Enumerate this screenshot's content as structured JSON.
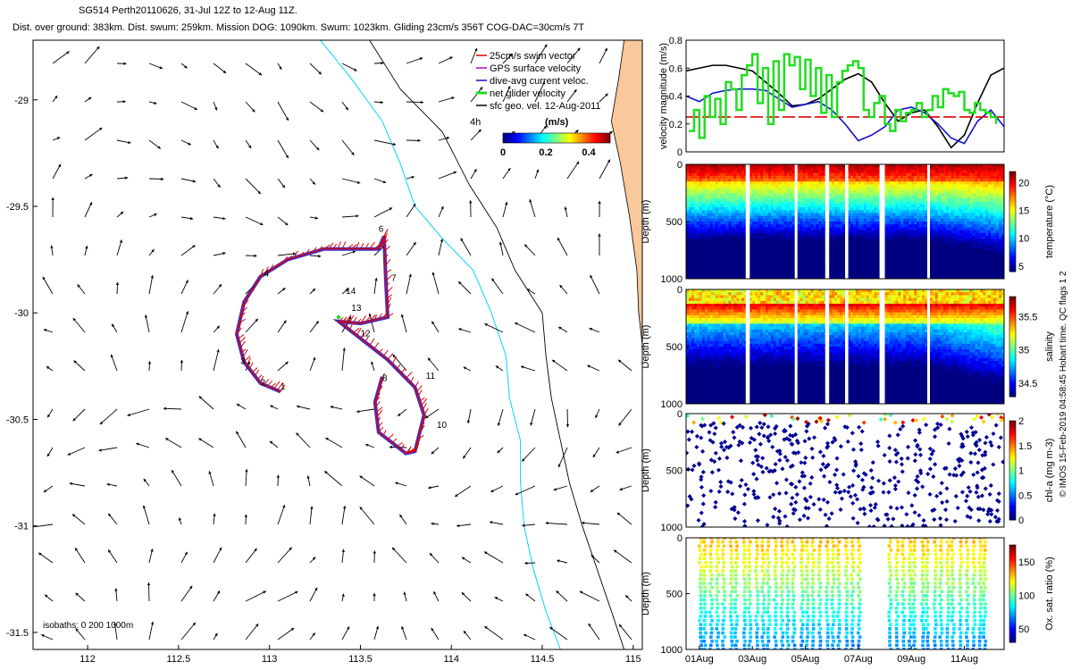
{
  "header": {
    "line1": "SG514 Perth20110626, 31-Jul 12Z to 12-Aug 11Z.",
    "line2": "Dist. over ground: 383km. Dist. swum: 259km. Mission DOG: 1090km. Swum: 1023km. Gliding 23cm/s 356T COG-DAC=30cm/s 7T"
  },
  "side_note": "© IMOS 15-Feb-2019 04:58:45 Hobart time. QC flags 1  2",
  "colors": {
    "land": "#f9c89b",
    "isobath_200": "#00d5ff",
    "isobath_1000": "#000000",
    "track_red": "#e00000",
    "track_blue": "#1010d0",
    "net_green": "#22dd22"
  },
  "map": {
    "xlim": [
      111.7,
      115.05
    ],
    "ylim": [
      -31.58,
      -28.72
    ],
    "xticks": [
      "112",
      "112.5",
      "113",
      "113.5",
      "114",
      "114.5",
      "115"
    ],
    "xtick_values": [
      112,
      112.5,
      113,
      113.5,
      114,
      114.5,
      115
    ],
    "yticks": [
      "-29",
      "-29.5",
      "-30",
      "-30.5",
      "-31",
      "-31.5"
    ],
    "ytick_values": [
      -29,
      -29.5,
      -30,
      -30.5,
      -31,
      -31.5
    ],
    "isobaths_label": "isobaths: 0   200   1000m",
    "legend": [
      {
        "label": "25cm/s swim vector",
        "color": "#e00000"
      },
      {
        "label": "GPS surface velocity",
        "color": "#c000c0"
      },
      {
        "label": "dive-avg current veloc.",
        "color": "#1010d0"
      },
      {
        "label": "net glider velocity",
        "color": "#22dd22"
      },
      {
        "label": "sfc geo. vel. 12-Aug-2011",
        "color": "#000000"
      }
    ],
    "colorbar": {
      "label": "(m/s)",
      "ticks": [
        "0",
        "0.2",
        "0.4"
      ],
      "range": [
        0,
        0.5
      ],
      "corner_label": "4h"
    },
    "track_labels": [
      {
        "t": "1",
        "lon": 113.06,
        "lat": -30.36
      },
      {
        "t": "2",
        "lon": 112.95,
        "lat": -30.34
      },
      {
        "t": "3",
        "lon": 112.84,
        "lat": -30.24
      },
      {
        "t": "4",
        "lon": 112.97,
        "lat": -29.83
      },
      {
        "t": "6",
        "lon": 113.6,
        "lat": -29.62
      },
      {
        "t": "7",
        "lon": 113.67,
        "lat": -29.85
      },
      {
        "t": "8",
        "lon": 113.62,
        "lat": -30.32
      },
      {
        "t": "10",
        "lon": 113.92,
        "lat": -30.54
      },
      {
        "t": "11",
        "lon": 113.86,
        "lat": -30.31
      },
      {
        "t": "12",
        "lon": 113.5,
        "lat": -30.11
      },
      {
        "t": "13",
        "lon": 113.45,
        "lat": -29.99
      },
      {
        "t": "14",
        "lon": 113.42,
        "lat": -29.91
      }
    ]
  },
  "chart_data": [
    {
      "type": "line",
      "ylabel": "velocity magnitude (m/s)",
      "xlim": [
        0.5,
        12.5
      ],
      "ylim": [
        0,
        0.8
      ],
      "yticks": [
        "0",
        "0.2",
        "0.4",
        "0.6",
        "0.8"
      ],
      "ytick_values": [
        0,
        0.2,
        0.4,
        0.6,
        0.8
      ],
      "series": [
        {
          "color": "#000000",
          "x": [
            0.5,
            1,
            1.5,
            2,
            2.5,
            3,
            3.5,
            4,
            4.5,
            5,
            5.5,
            6,
            6.5,
            7,
            7.5,
            8,
            8.5,
            9,
            9.5,
            10,
            10.5,
            11,
            11.5,
            12,
            12.5
          ],
          "values": [
            0.58,
            0.6,
            0.62,
            0.62,
            0.6,
            0.58,
            0.5,
            0.42,
            0.33,
            0.34,
            0.38,
            0.45,
            0.52,
            0.56,
            0.5,
            0.35,
            0.22,
            0.28,
            0.3,
            0.18,
            0.03,
            0.12,
            0.35,
            0.55,
            0.6
          ]
        },
        {
          "color": "#1010d0",
          "x": [
            0.5,
            1,
            1.5,
            2,
            2.5,
            3,
            3.5,
            4,
            4.5,
            5,
            5.5,
            6,
            6.5,
            7,
            7.5,
            8,
            8.5,
            9,
            9.5,
            10,
            10.5,
            11,
            11.5,
            12,
            12.5
          ],
          "values": [
            0.4,
            0.36,
            0.42,
            0.44,
            0.45,
            0.45,
            0.44,
            0.38,
            0.32,
            0.34,
            0.36,
            0.3,
            0.2,
            0.08,
            0.12,
            0.18,
            0.3,
            0.32,
            0.28,
            0.2,
            0.1,
            0.06,
            0.22,
            0.3,
            0.18
          ]
        },
        {
          "color": "#e00000",
          "x": [
            0.5,
            12.5
          ],
          "values": [
            0.25,
            0.25
          ]
        },
        {
          "color": "#22dd22",
          "x": [
            0.6,
            0.8,
            1,
            1.2,
            1.4,
            1.6,
            1.8,
            2,
            2.2,
            2.4,
            2.6,
            2.8,
            3,
            3.2,
            3.4,
            3.6,
            3.8,
            4,
            4.2,
            4.4,
            4.6,
            4.8,
            5,
            5.2,
            5.4,
            5.6,
            5.8,
            6,
            6.2,
            6.4,
            6.6,
            6.8,
            7,
            7.2,
            7.4,
            7.6,
            7.8,
            8,
            8.2,
            8.4,
            8.6,
            8.8,
            9,
            9.2,
            9.4,
            9.6,
            9.8,
            10,
            10.2,
            10.4,
            10.6,
            10.8,
            11,
            11.2,
            11.4,
            11.6,
            11.8,
            12,
            12.2
          ],
          "values": [
            0.15,
            0.3,
            0.1,
            0.4,
            0.25,
            0.38,
            0.2,
            0.5,
            0.45,
            0.3,
            0.55,
            0.62,
            0.7,
            0.35,
            0.6,
            0.2,
            0.65,
            0.3,
            0.7,
            0.62,
            0.68,
            0.45,
            0.66,
            0.4,
            0.6,
            0.28,
            0.55,
            0.25,
            0.5,
            0.58,
            0.62,
            0.65,
            0.6,
            0.3,
            0.25,
            0.35,
            0.4,
            0.2,
            0.15,
            0.3,
            0.22,
            0.28,
            0.3,
            0.35,
            0.25,
            0.3,
            0.4,
            0.32,
            0.45,
            0.42,
            0.4,
            0.43,
            0.3,
            0.28,
            0.35,
            0.3,
            0.28,
            0.25,
            0.2
          ]
        }
      ]
    },
    {
      "type": "heatmap",
      "ylabel": "Depth (m)",
      "clabel": "temperature (°C)",
      "clim": [
        4,
        22
      ],
      "cticks": [
        "5",
        "10",
        "15",
        "20"
      ],
      "ctick_values": [
        5,
        10,
        15,
        20
      ],
      "yticks": [
        "0",
        "500",
        "1000"
      ],
      "ytick_values": [
        0,
        500,
        1000
      ],
      "ylim": [
        1000,
        0
      ]
    },
    {
      "type": "heatmap",
      "ylabel": "Depth (m)",
      "clabel": "salinity",
      "clim": [
        34.3,
        35.8
      ],
      "cticks": [
        "34.5",
        "35",
        "35.5"
      ],
      "ctick_values": [
        34.5,
        35,
        35.5
      ],
      "yticks": [
        "0",
        "500",
        "1000"
      ],
      "ytick_values": [
        0,
        500,
        1000
      ],
      "ylim": [
        1000,
        0
      ]
    },
    {
      "type": "scatter",
      "ylabel": "Depth (m)",
      "clabel": "chl-a (mg m-3)",
      "clim": [
        0,
        2
      ],
      "cticks": [
        "0",
        "0.5",
        "1",
        "1.5",
        "2"
      ],
      "ctick_values": [
        0,
        0.5,
        1,
        1.5,
        2
      ],
      "yticks": [
        "0",
        "500",
        "1000"
      ],
      "ytick_values": [
        0,
        500,
        1000
      ],
      "ylim": [
        1000,
        0
      ]
    },
    {
      "type": "scatter",
      "ylabel": "Depth (m)",
      "clabel": "Ox. sat. ratio (%)",
      "clim": [
        30,
        175
      ],
      "cticks": [
        "50",
        "100",
        "150"
      ],
      "ctick_values": [
        50,
        100,
        150
      ],
      "yticks": [
        "0",
        "500",
        "1000"
      ],
      "ytick_values": [
        0,
        500,
        1000
      ],
      "ylim": [
        1000,
        0
      ],
      "xticks": [
        "01Aug",
        "03Aug",
        "05Aug",
        "07Aug",
        "09Aug",
        "11Aug"
      ],
      "xtick_values": [
        1,
        3,
        5,
        7,
        9,
        11
      ]
    }
  ]
}
